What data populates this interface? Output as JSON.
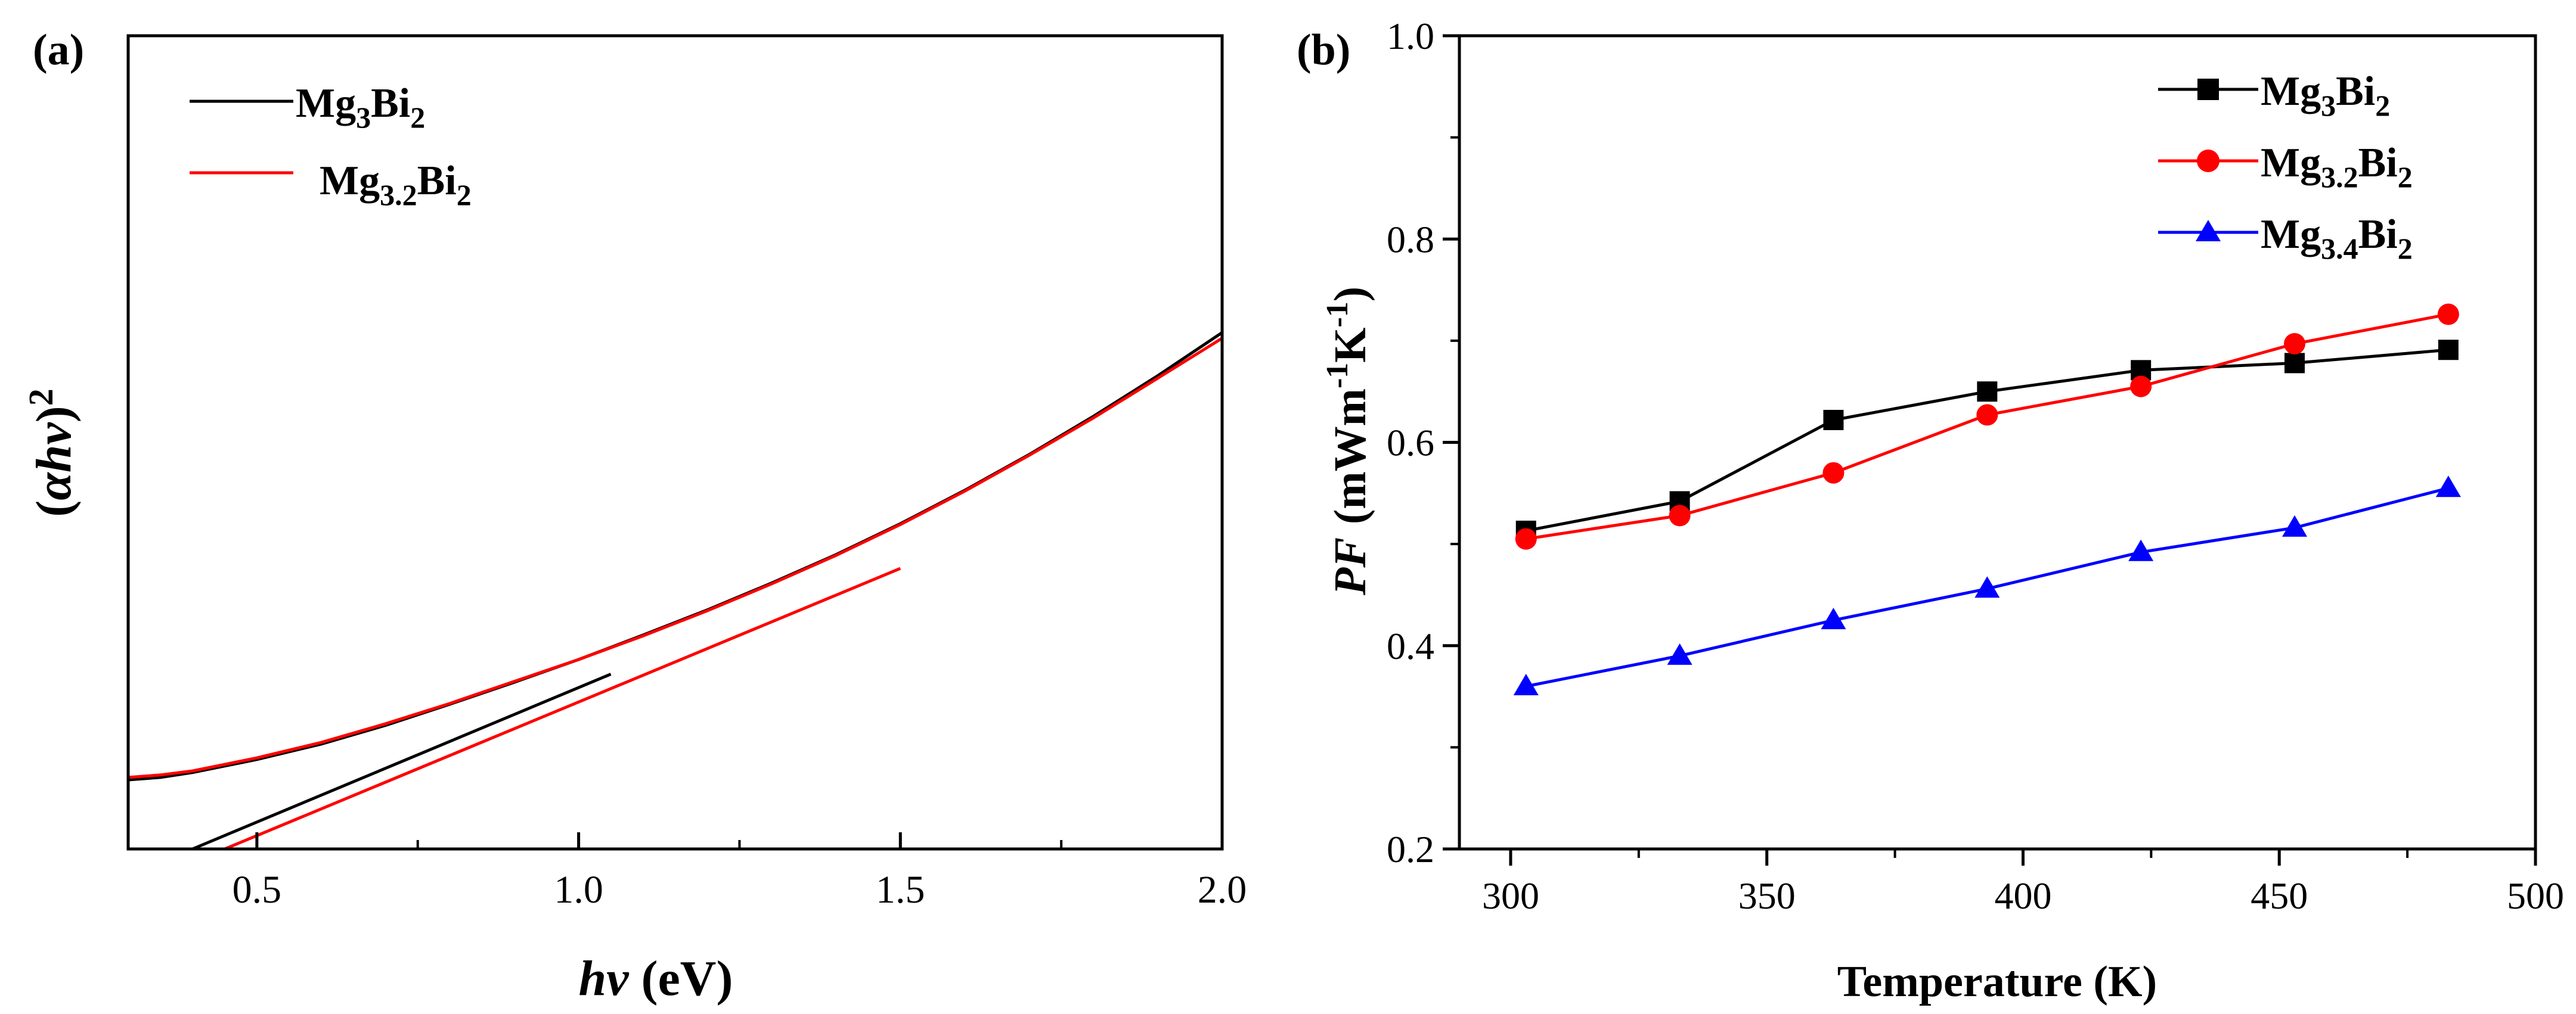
{
  "chart_data": [
    {
      "type": "line",
      "panel_label": "(a)",
      "xlabel": "hν (eV)",
      "ylabel": "(αhν)²",
      "xlim": [
        0.3,
        2.0
      ],
      "ylim": [
        0,
        1
      ],
      "xticks": [
        "0.5",
        "1.0",
        "1.5",
        "2.0"
      ],
      "yticks_shown": false,
      "legend": {
        "placement": "top-left",
        "entries": [
          {
            "name": "Mg3Bi2",
            "base": "Mg",
            "sub1": "3",
            "mid": "Bi",
            "sub2": "2",
            "color": "#000000"
          },
          {
            "name": "Mg3.2Bi2",
            "base": "Mg",
            "sub1": "3.2",
            "mid": "Bi",
            "sub2": "2",
            "color": "#ff0000"
          }
        ]
      },
      "series": [
        {
          "name": "Mg3Bi2",
          "color": "#000000",
          "x": [
            0.3,
            0.35,
            0.4,
            0.5,
            0.6,
            0.7,
            0.8,
            0.9,
            1.0,
            1.1,
            1.2,
            1.3,
            1.4,
            1.5,
            1.6,
            1.7,
            1.8,
            1.9,
            2.0
          ],
          "y": [
            0.085,
            0.088,
            0.094,
            0.11,
            0.129,
            0.152,
            0.178,
            0.205,
            0.233,
            0.263,
            0.294,
            0.327,
            0.362,
            0.4,
            0.441,
            0.485,
            0.532,
            0.582,
            0.635
          ]
        },
        {
          "name": "Mg3.2Bi2",
          "color": "#ff0000",
          "x": [
            0.3,
            0.35,
            0.4,
            0.5,
            0.6,
            0.7,
            0.8,
            0.9,
            1.0,
            1.1,
            1.2,
            1.3,
            1.4,
            1.5,
            1.6,
            1.7,
            1.8,
            1.9,
            2.0
          ],
          "y": [
            0.088,
            0.091,
            0.096,
            0.112,
            0.131,
            0.154,
            0.179,
            0.206,
            0.233,
            0.262,
            0.293,
            0.326,
            0.361,
            0.399,
            0.44,
            0.484,
            0.53,
            0.579,
            0.628
          ]
        }
      ],
      "tangent_lines": [
        {
          "color": "#000000",
          "x": [
            0.4,
            1.05
          ],
          "y": [
            0.0,
            0.215
          ]
        },
        {
          "color": "#ff0000",
          "x": [
            0.45,
            1.5
          ],
          "y": [
            0.0,
            0.345
          ]
        }
      ]
    },
    {
      "type": "line",
      "panel_label": "(b)",
      "xlabel": "Temperature (K)",
      "ylabel_italic": "PF",
      "ylabel_units": "(mWm",
      "ylabel_exp1": "-1",
      "ylabel_units2": "K",
      "ylabel_exp2": "-1",
      "ylabel_close": ")",
      "xlim": [
        290,
        500
      ],
      "ylim": [
        0.2,
        1.0
      ],
      "xticks": [
        300,
        350,
        400,
        450,
        500
      ],
      "yticks": [
        0.2,
        0.4,
        0.6,
        0.8,
        1.0
      ],
      "xticklabels": [
        "300",
        "350",
        "400",
        "450",
        "500"
      ],
      "yticklabels": [
        "0.2",
        "0.4",
        "0.6",
        "0.8",
        "1.0"
      ],
      "legend": {
        "placement": "top-right",
        "entries": [
          {
            "name": "Mg3Bi2",
            "base": "Mg",
            "sub1": "3",
            "mid": "Bi",
            "sub2": "2",
            "color": "#000000",
            "marker": "square"
          },
          {
            "name": "Mg3.2Bi2",
            "base": "Mg",
            "sub1": "3.2",
            "mid": "Bi",
            "sub2": "2",
            "color": "#ff0000",
            "marker": "circle"
          },
          {
            "name": "Mg3.4Bi2",
            "base": "Mg",
            "sub1": "3.4",
            "mid": "Bi",
            "sub2": "2",
            "color": "#0000ff",
            "marker": "triangle"
          }
        ]
      },
      "series": [
        {
          "name": "Mg3Bi2",
          "color": "#000000",
          "marker": "square",
          "x": [
            303,
            333,
            363,
            393,
            423,
            453,
            483
          ],
          "y": [
            0.513,
            0.542,
            0.622,
            0.65,
            0.671,
            0.678,
            0.691
          ]
        },
        {
          "name": "Mg3.2Bi2",
          "color": "#ff0000",
          "marker": "circle",
          "x": [
            303,
            333,
            363,
            393,
            423,
            453,
            483
          ],
          "y": [
            0.505,
            0.528,
            0.57,
            0.627,
            0.655,
            0.697,
            0.726
          ]
        },
        {
          "name": "Mg3.4Bi2",
          "color": "#0000ff",
          "marker": "triangle",
          "x": [
            303,
            333,
            363,
            393,
            423,
            453,
            483
          ],
          "y": [
            0.36,
            0.39,
            0.425,
            0.456,
            0.492,
            0.516,
            0.555
          ]
        }
      ]
    }
  ]
}
